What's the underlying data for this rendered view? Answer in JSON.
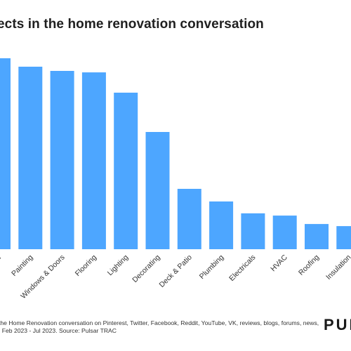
{
  "title": "ects in the home renovation conversation",
  "footnote": {
    "line1": "the Home Renovation conversation on Pinterest, Twitter, Facebook, Reddit, YouTube, VK, reviews, blogs, forums, news,",
    "line2": ", Feb 2023 - Jul 2023. Source: Pulsar TRAC"
  },
  "logo_text": "PUL",
  "bar_color": "#4da6ff",
  "chart_data": {
    "type": "bar",
    "categories": [
      "e",
      "Painting",
      "Windows & Doors",
      "Flooring",
      "Lighting",
      "Decorating",
      "Deck & Patio",
      "Plumbing",
      "Electricals",
      "HVAC",
      "Roofing",
      "Insulation"
    ],
    "values": [
      100,
      95.6,
      93.4,
      92.6,
      82,
      61.4,
      31.6,
      25,
      18.8,
      17.6,
      13.2,
      12.1
    ],
    "ylim": [
      0,
      100
    ],
    "title": "",
    "xlabel": "",
    "ylabel": "",
    "grid": false,
    "legend": "none"
  }
}
